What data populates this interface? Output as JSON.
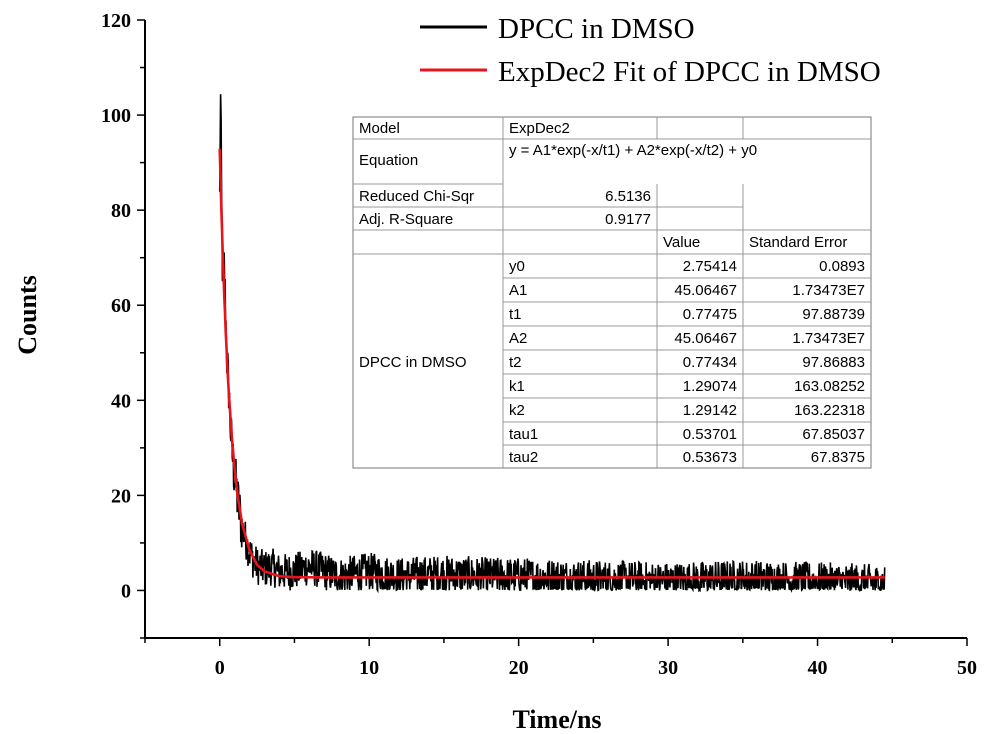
{
  "chart_data": {
    "type": "line",
    "xlabel": "Time/ns",
    "ylabel": "Counts",
    "xlim": [
      -5,
      50
    ],
    "ylim": [
      -10,
      120
    ],
    "x_ticks": [
      0,
      10,
      20,
      30,
      40,
      50
    ],
    "y_ticks": [
      0,
      20,
      40,
      60,
      80,
      100,
      120
    ],
    "grid": false,
    "legend_position": "top-right",
    "series": [
      {
        "name": "DPCC in DMSO",
        "color": "#000000",
        "kind": "measured decay (noisy)",
        "x": [
          0,
          0.05,
          0.1,
          0.15,
          0.2,
          0.3,
          0.4,
          0.5,
          0.6,
          0.7,
          0.8,
          1.0,
          1.2,
          1.4,
          1.6,
          1.8,
          2.0,
          2.3,
          2.6,
          3.0,
          3.5,
          4,
          5,
          6,
          8,
          10,
          12,
          15,
          18,
          20,
          25,
          30,
          35,
          40,
          44.5
        ],
        "values": [
          82,
          106,
          90,
          75,
          65,
          68,
          58,
          47,
          43,
          36,
          30,
          24,
          19,
          15,
          12,
          10,
          8,
          6,
          5,
          4.5,
          5,
          3.8,
          4,
          5,
          3,
          4,
          3,
          3.5,
          3,
          3,
          2.5,
          2,
          2.5,
          2,
          1.5
        ],
        "noise_amplitude": 4
      },
      {
        "name": "ExpDec2 Fit of DPCC in DMSO",
        "color": "#e8141c",
        "kind": "fit",
        "x": [
          0,
          0.1,
          0.2,
          0.3,
          0.4,
          0.5,
          0.6,
          0.8,
          1.0,
          1.2,
          1.5,
          2.0,
          2.5,
          3.0,
          4.0,
          5.0,
          7.0,
          10,
          20,
          30,
          40,
          44.5
        ],
        "values": [
          92.9,
          81.2,
          71.0,
          62.2,
          54.5,
          47.8,
          42.0,
          32.6,
          25.4,
          19.9,
          14.0,
          8.4,
          5.4,
          4.0,
          3.0,
          2.8,
          2.75,
          2.75,
          2.75,
          2.75,
          2.75,
          2.75
        ]
      }
    ]
  },
  "legend": {
    "entries": [
      {
        "label": "DPCC in DMSO",
        "color": "#000000"
      },
      {
        "label": "ExpDec2 Fit of DPCC in DMSO",
        "color": "#e8141c"
      }
    ]
  },
  "fit_table": {
    "model_label": "Model",
    "model_value": "ExpDec2",
    "equation_label": "Equation",
    "equation_value": "y = A1*exp(-x/t1) + A2*exp(-x/t2) + y0",
    "chi_label": "Reduced Chi-Sqr",
    "chi_value": "6.5136",
    "r2_label": "Adj. R-Square",
    "r2_value": "0.9177",
    "value_header": "Value",
    "error_header": "Standard Error",
    "group_label": "DPCC in DMSO",
    "params": [
      {
        "name": "y0",
        "value": "2.75414",
        "error": "0.0893"
      },
      {
        "name": "A1",
        "value": "45.06467",
        "error": "1.73473E7"
      },
      {
        "name": "t1",
        "value": "0.77475",
        "error": "97.88739"
      },
      {
        "name": "A2",
        "value": "45.06467",
        "error": "1.73473E7"
      },
      {
        "name": "t2",
        "value": "0.77434",
        "error": "97.86883"
      },
      {
        "name": "k1",
        "value": "1.29074",
        "error": "163.08252"
      },
      {
        "name": "k2",
        "value": "1.29142",
        "error": "163.22318"
      },
      {
        "name": "tau1",
        "value": "0.53701",
        "error": "67.85037"
      },
      {
        "name": "tau2",
        "value": "0.53673",
        "error": "67.8375"
      }
    ]
  }
}
